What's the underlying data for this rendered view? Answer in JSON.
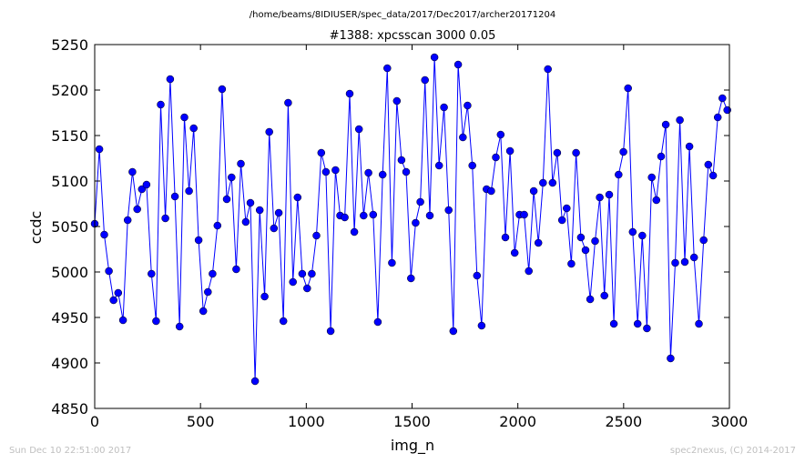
{
  "page": {
    "timestamp": "Sun Dec 10 22:51:00 2017",
    "copyright": "spec2nexus, (C) 2014-2017"
  },
  "chart_data": {
    "type": "line",
    "subtitle": "/home/beams/8IDIUSER/spec_data/2017/Dec2017/archer20171204",
    "title": "#1388: xpcsscan 3000 0.05",
    "xlabel": "img_n",
    "ylabel": "ccdc",
    "xlim": [
      0,
      3000
    ],
    "ylim": [
      4850,
      5250
    ],
    "xticks": [
      0,
      500,
      1000,
      1500,
      2000,
      2500,
      3000
    ],
    "yticks": [
      4850,
      4900,
      4950,
      5000,
      5050,
      5100,
      5150,
      5200,
      5250
    ],
    "grid": false,
    "legend": "none",
    "series": [
      {
        "color": "#0000ff",
        "marker": "circle",
        "x": [
          0,
          22,
          45,
          67,
          89,
          111,
          134,
          156,
          178,
          201,
          223,
          245,
          268,
          290,
          312,
          334,
          357,
          379,
          401,
          424,
          446,
          468,
          491,
          513,
          535,
          557,
          580,
          602,
          624,
          647,
          669,
          691,
          714,
          736,
          758,
          780,
          803,
          825,
          847,
          870,
          892,
          914,
          937,
          959,
          981,
          1004,
          1026,
          1048,
          1071,
          1093,
          1115,
          1138,
          1160,
          1182,
          1205,
          1227,
          1249,
          1271,
          1294,
          1316,
          1338,
          1361,
          1383,
          1405,
          1428,
          1450,
          1472,
          1495,
          1517,
          1539,
          1561,
          1584,
          1606,
          1628,
          1651,
          1673,
          1695,
          1718,
          1740,
          1762,
          1785,
          1807,
          1829,
          1852,
          1874,
          1896,
          1919,
          1941,
          1963,
          1985,
          2008,
          2030,
          2052,
          2075,
          2097,
          2119,
          2142,
          2164,
          2186,
          2209,
          2231,
          2253,
          2275,
          2298,
          2320,
          2342,
          2365,
          2387,
          2409,
          2432,
          2454,
          2476,
          2499,
          2521,
          2543,
          2566,
          2588,
          2610,
          2633,
          2655,
          2677,
          2699,
          2722,
          2744,
          2766,
          2789,
          2811,
          2833,
          2856,
          2878,
          2900,
          2923,
          2945,
          2967,
          2990
        ],
        "y": [
          5053,
          5135,
          5041,
          5001,
          4969,
          4977,
          4947,
          5057,
          5110,
          5069,
          5091,
          5096,
          4998,
          4946,
          5184,
          5059,
          5212,
          5083,
          4940,
          5170,
          5089,
          5158,
          5035,
          4957,
          4978,
          4998,
          5051,
          5201,
          5080,
          5104,
          5003,
          5119,
          5055,
          5076,
          4880,
          5068,
          4973,
          5154,
          5048,
          5065,
          4946,
          5186,
          4989,
          5082,
          4998,
          4982,
          4998,
          5040,
          5131,
          5110,
          4935,
          5112,
          5062,
          5060,
          5196,
          5044,
          5157,
          5062,
          5109,
          5063,
          4945,
          5107,
          5224,
          5010,
          5188,
          5123,
          5110,
          4993,
          5054,
          5077,
          5211,
          5062,
          5236,
          5117,
          5181,
          5068,
          4935,
          5228,
          5148,
          5183,
          5117,
          4996,
          4941,
          5091,
          5089,
          5126,
          5151,
          5038,
          5133,
          5021,
          5063,
          5063,
          5001,
          5089,
          5032,
          5098,
          5223,
          5098,
          5131,
          5057,
          5070,
          5009,
          5131,
          5038,
          5024,
          4970,
          5034,
          5082,
          4974,
          5085,
          4943,
          5107,
          5132,
          5202,
          5044,
          4943,
          5040,
          4938,
          5104,
          5079,
          5127,
          5162,
          4905,
          5010,
          5167,
          5011,
          5138,
          5016,
          4943,
          5035,
          5118,
          5106,
          5170,
          5191,
          5178
        ]
      }
    ]
  }
}
